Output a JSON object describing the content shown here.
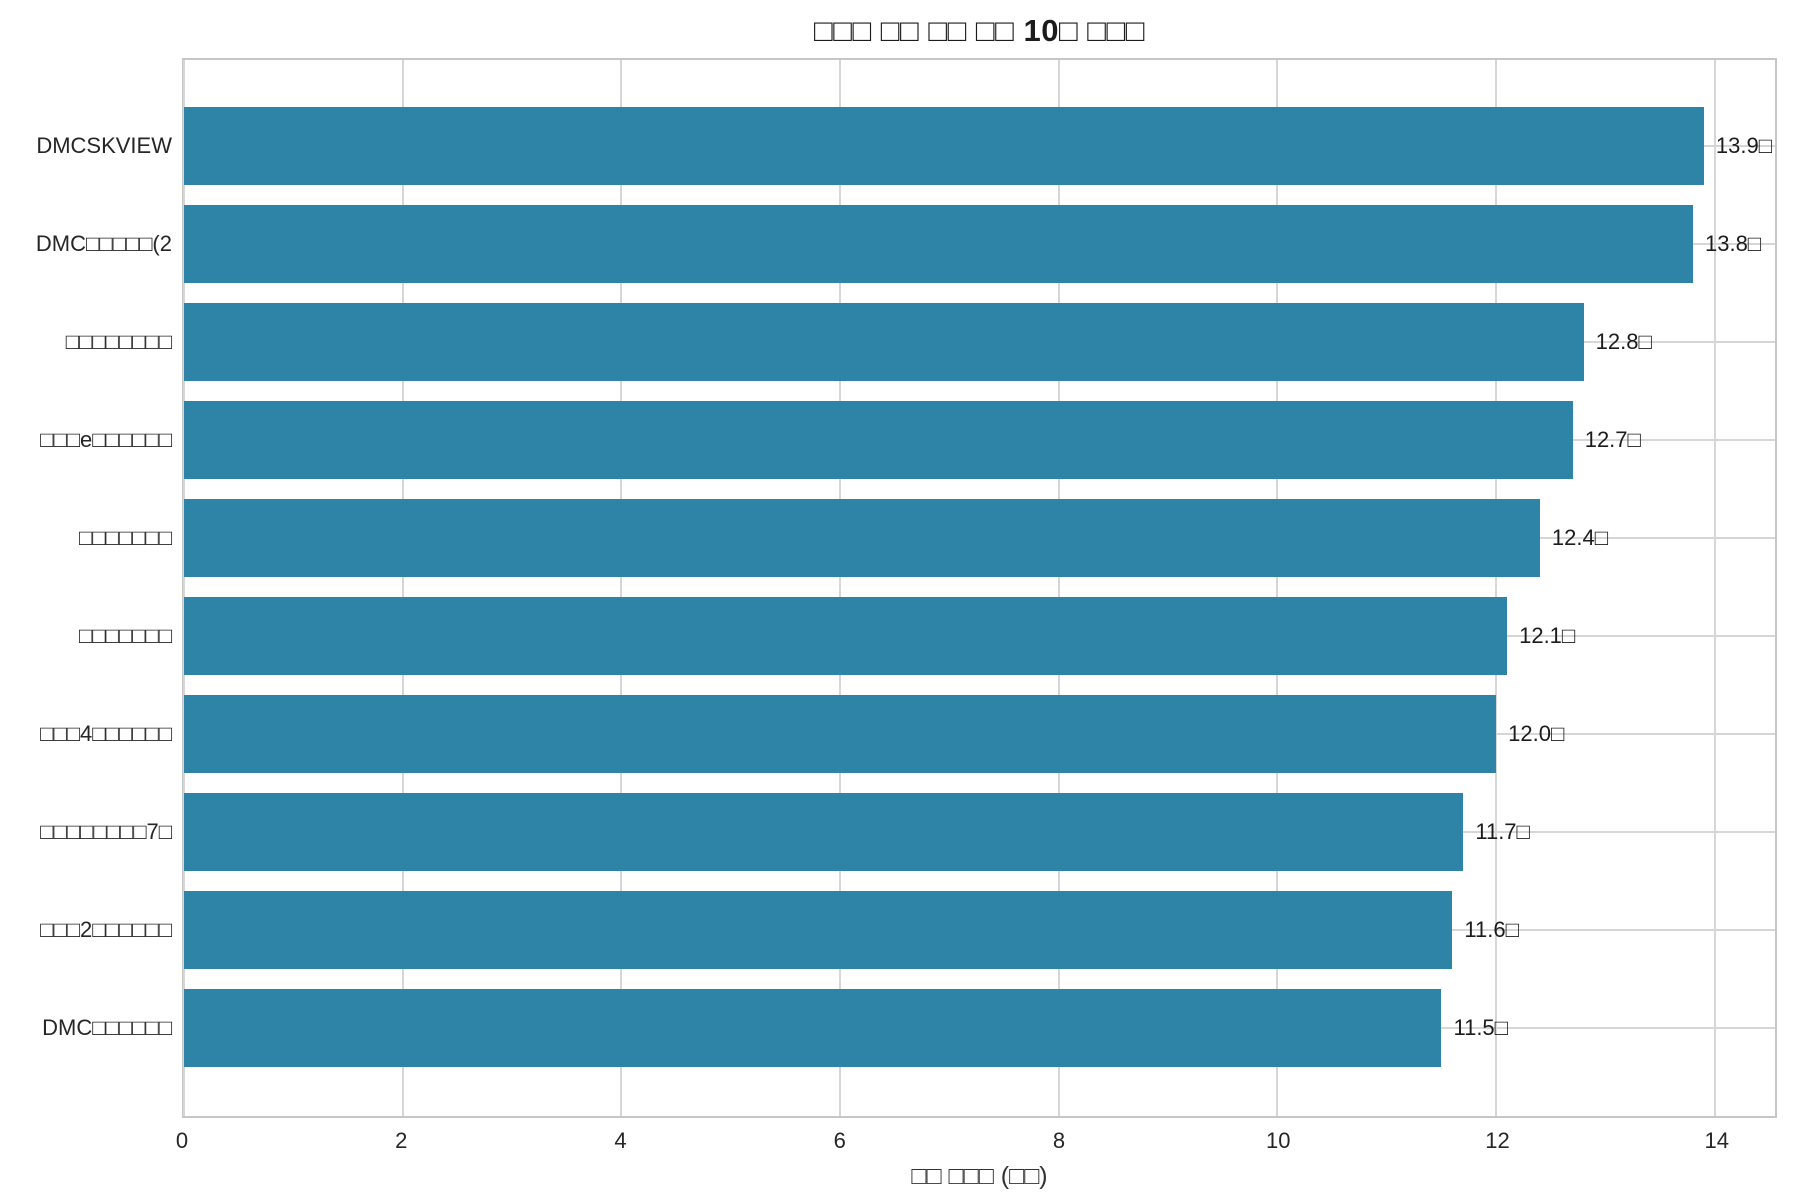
{
  "title": "□□□ □□ □□ □□ 10□ □□□",
  "chart_data": {
    "type": "bar",
    "orientation": "horizontal",
    "title": "□□□ □□ □□ □□ 10□ □□□",
    "xlabel": "□□ □□□ (□□)",
    "ylabel": "",
    "categories": [
      "DMCSKVIEW",
      "DMC□□□□□(2",
      "□□□□□□□□",
      "□□□e□□□□□□",
      "□□□□□□□",
      "□□□□□□□",
      "□□□4□□□□□□",
      "□□□□□□□□7□",
      "□□□2□□□□□□",
      "DMC□□□□□□"
    ],
    "values": [
      13.9,
      13.8,
      12.8,
      12.7,
      12.4,
      12.1,
      12.0,
      11.7,
      11.6,
      11.5
    ],
    "value_labels": [
      "13.9□",
      "13.8□",
      "12.8□",
      "12.7□",
      "12.4□",
      "12.1□",
      "12.0□",
      "11.7□",
      "11.6□",
      "11.5□"
    ],
    "xlim": [
      0,
      14.55
    ],
    "x_ticks": [
      0,
      2,
      4,
      6,
      8,
      10,
      12,
      14
    ],
    "x_tick_labels": [
      "0",
      "2",
      "4",
      "6",
      "8",
      "10",
      "12",
      "14"
    ],
    "grid": "both",
    "legend": "none",
    "bar_color": "#2d84a7",
    "grid_color": "#d6d6d6",
    "spine_color": "#c6c6c6",
    "text_color": "#262626"
  }
}
